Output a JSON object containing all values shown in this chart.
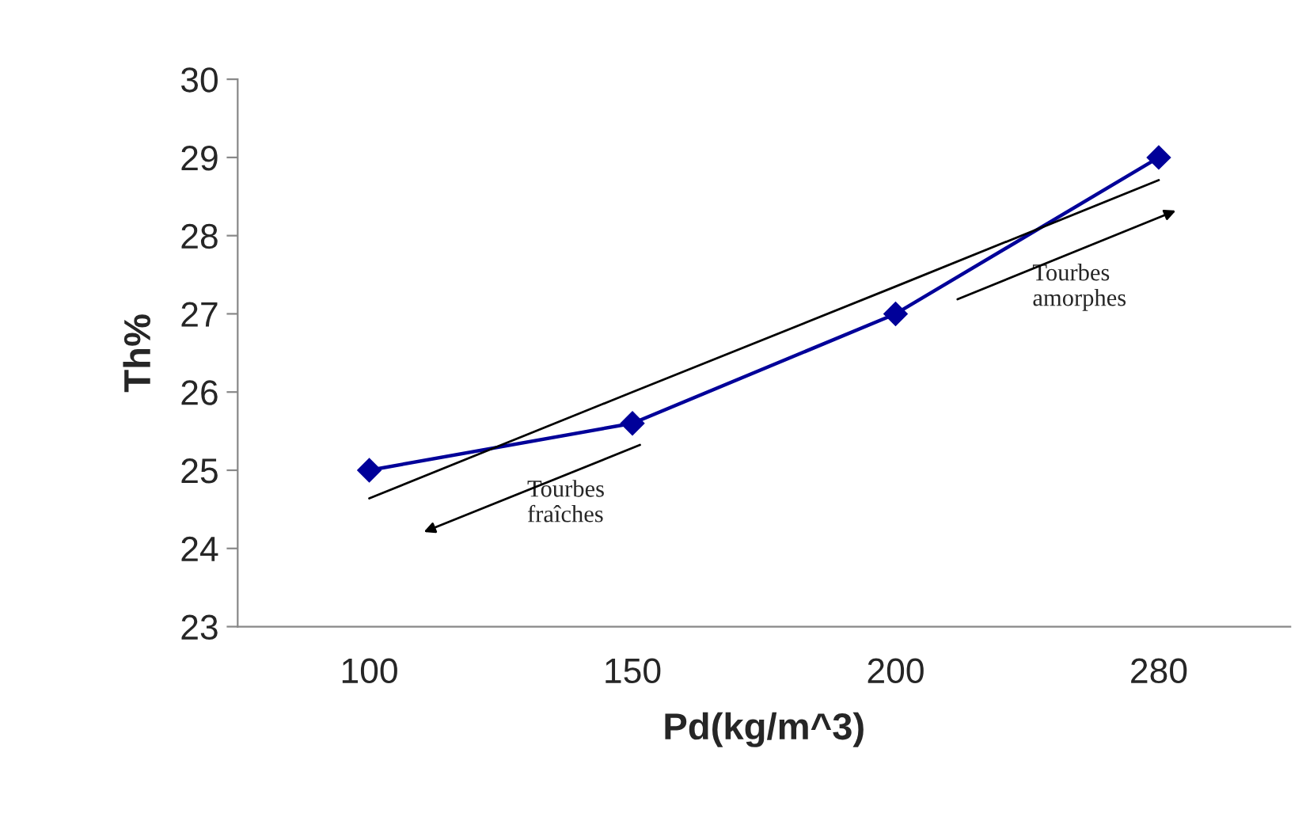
{
  "chart_data": {
    "type": "line",
    "xlabel": "Pd(kg/m^3)",
    "ylabel": "Th%",
    "categories": [
      "100",
      "150",
      "200",
      "280"
    ],
    "series": [
      {
        "type": "line",
        "color": "#000099",
        "values": [
          25,
          25.6,
          27,
          29
        ],
        "marker": "diamond"
      },
      {
        "type": "line",
        "color": "#000000",
        "values": [
          24.64,
          26.0,
          27.35,
          28.71
        ],
        "marker": "none"
      }
    ],
    "ylim": [
      23,
      30
    ],
    "yticks": [
      23,
      24,
      25,
      26,
      27,
      28,
      29,
      30
    ],
    "grid": false,
    "legend": false,
    "annotations": [
      "Tourbes\nfraîches",
      "Tourbes\namorphes"
    ]
  }
}
